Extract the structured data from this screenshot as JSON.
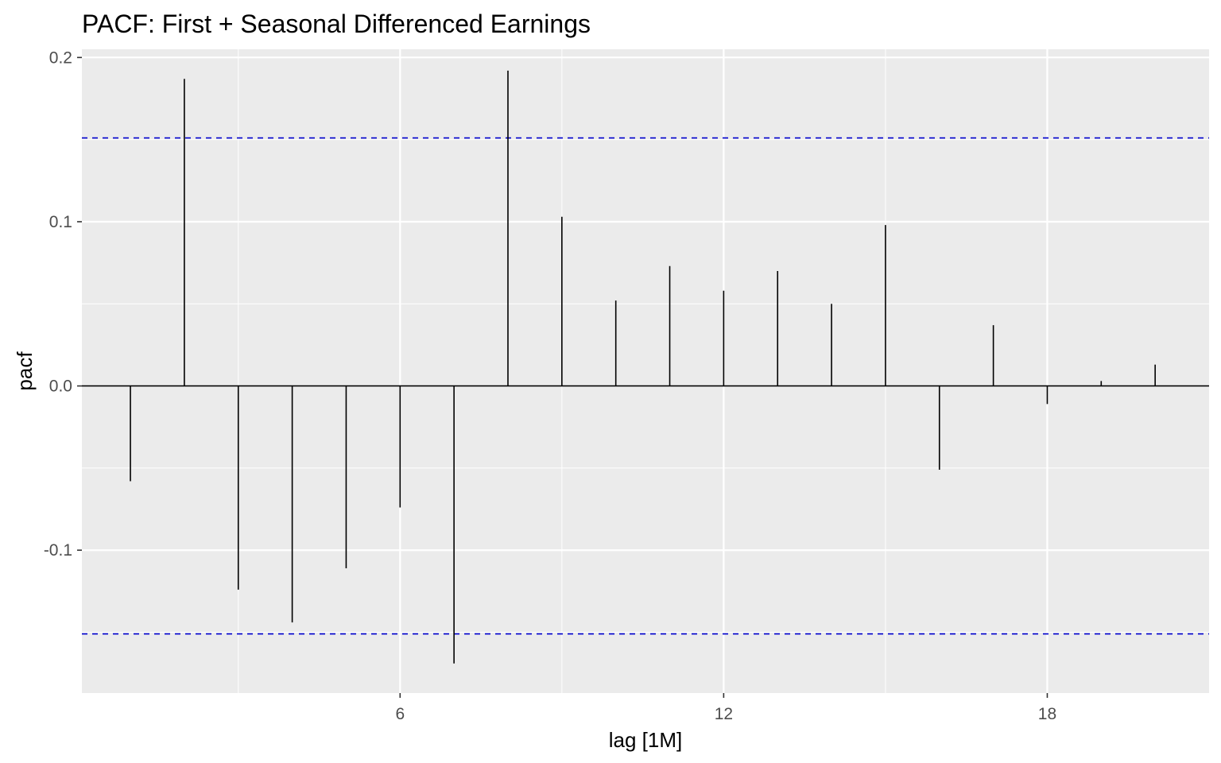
{
  "chart_data": {
    "type": "bar",
    "title": "PACF: First + Seasonal Differenced Earnings",
    "xlabel": "lag [1M]",
    "ylabel": "pacf",
    "x": [
      1,
      2,
      3,
      4,
      5,
      6,
      7,
      8,
      9,
      10,
      11,
      12,
      13,
      14,
      15,
      16,
      17,
      18,
      19,
      20
    ],
    "values": [
      -0.058,
      0.187,
      -0.124,
      -0.144,
      -0.111,
      -0.074,
      -0.169,
      0.192,
      0.103,
      0.052,
      0.073,
      0.058,
      0.07,
      0.05,
      0.098,
      -0.051,
      0.037,
      -0.011,
      0.003,
      0.013
    ],
    "confidence_bound": 0.151,
    "xlim": [
      0.1,
      21.0
    ],
    "ylim": [
      -0.187,
      0.205
    ],
    "x_ticks": [
      6,
      12,
      18
    ],
    "x_tick_labels": [
      "6",
      "12",
      "18"
    ],
    "y_ticks": [
      0.2,
      0.1,
      0.0,
      -0.1
    ],
    "y_tick_labels": [
      "0.2",
      "0.1",
      "0.0",
      "-0.1"
    ],
    "colors": {
      "panel": "#EBEBEB",
      "grid": "#FFFFFF",
      "bars": "#000000",
      "bounds": "#0000CD"
    }
  }
}
